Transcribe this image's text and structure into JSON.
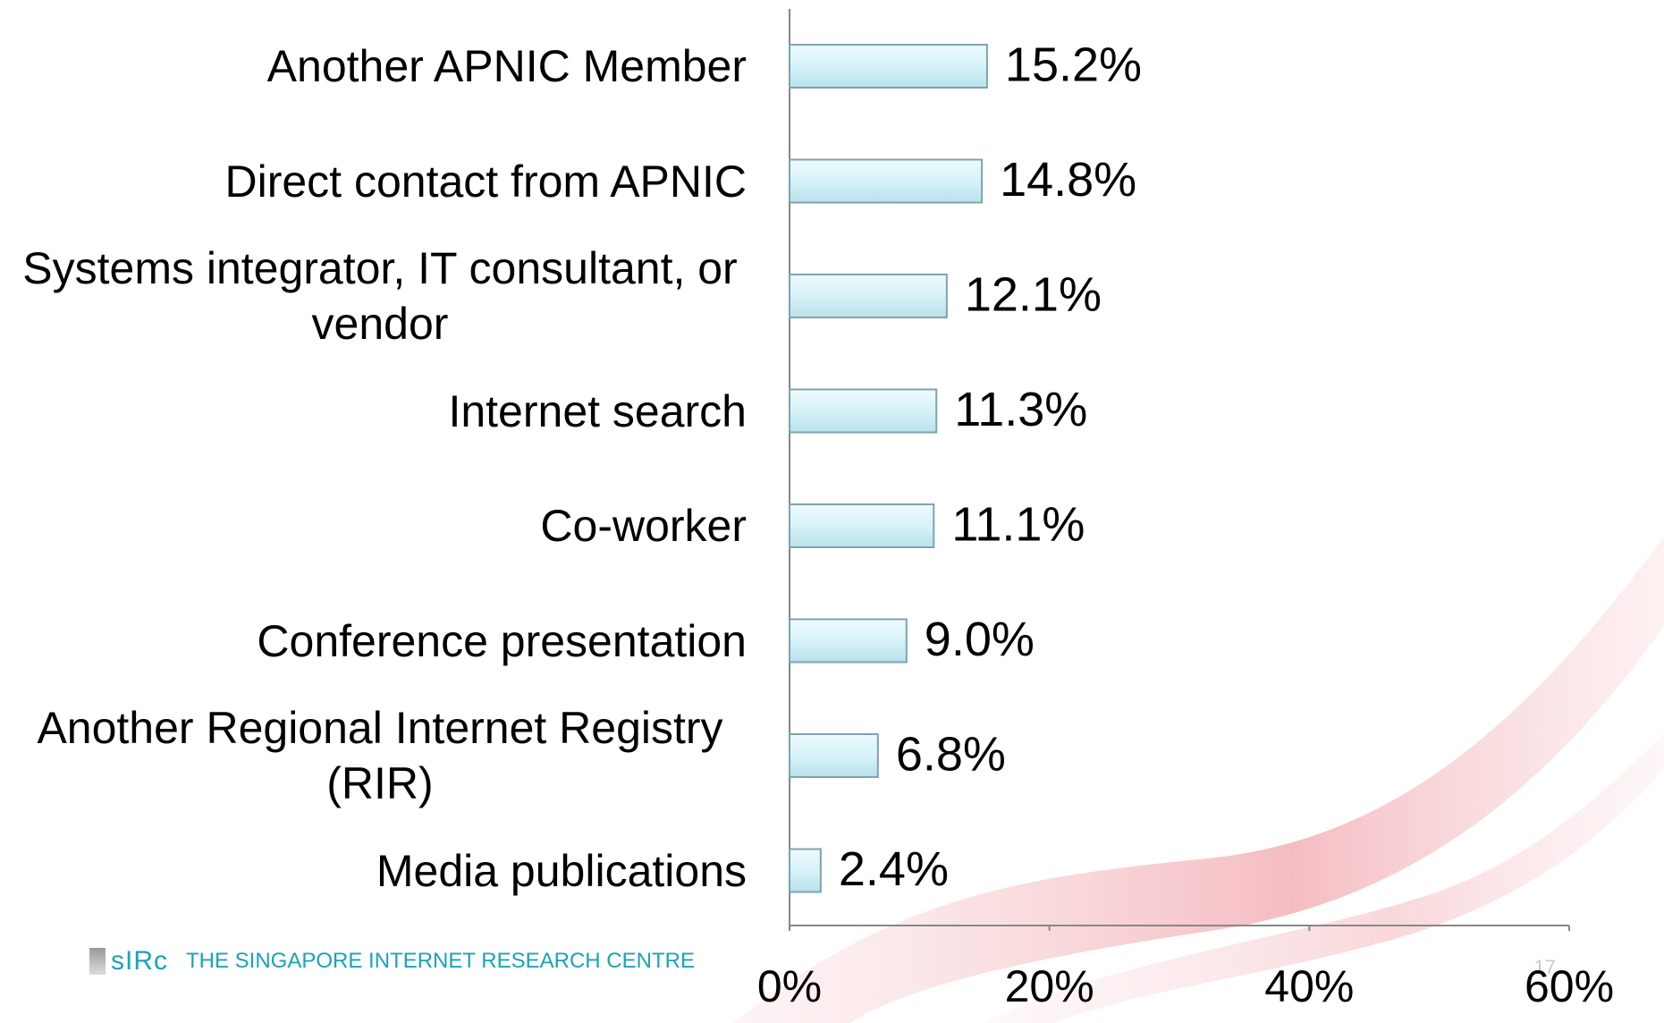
{
  "chart_data": {
    "type": "bar",
    "orientation": "horizontal",
    "categories": [
      "Another APNIC Member",
      "Direct contact from APNIC",
      "Systems integrator, IT consultant, or vendor",
      "Internet search",
      "Co-worker",
      "Conference presentation",
      "Another Regional Internet Registry (RIR)",
      "Media publications"
    ],
    "values": [
      15.2,
      14.8,
      12.1,
      11.3,
      11.1,
      9.0,
      6.8,
      2.4
    ],
    "value_labels": [
      "15.2%",
      "14.8%",
      "12.1%",
      "11.3%",
      "11.1%",
      "9.0%",
      "6.8%",
      "2.4%"
    ],
    "color": "#d6f2f8",
    "xlim": [
      0,
      60
    ],
    "xticks": [
      {
        "value": 0,
        "label": "0%"
      },
      {
        "value": 20,
        "label": "20%"
      },
      {
        "value": 40,
        "label": "40%"
      },
      {
        "value": 60,
        "label": "60%"
      }
    ],
    "grid": false
  },
  "footer": {
    "logo": "sIRc",
    "organization": "THE SINGAPORE INTERNET RESEARCH CENTRE",
    "page_number": "17"
  }
}
